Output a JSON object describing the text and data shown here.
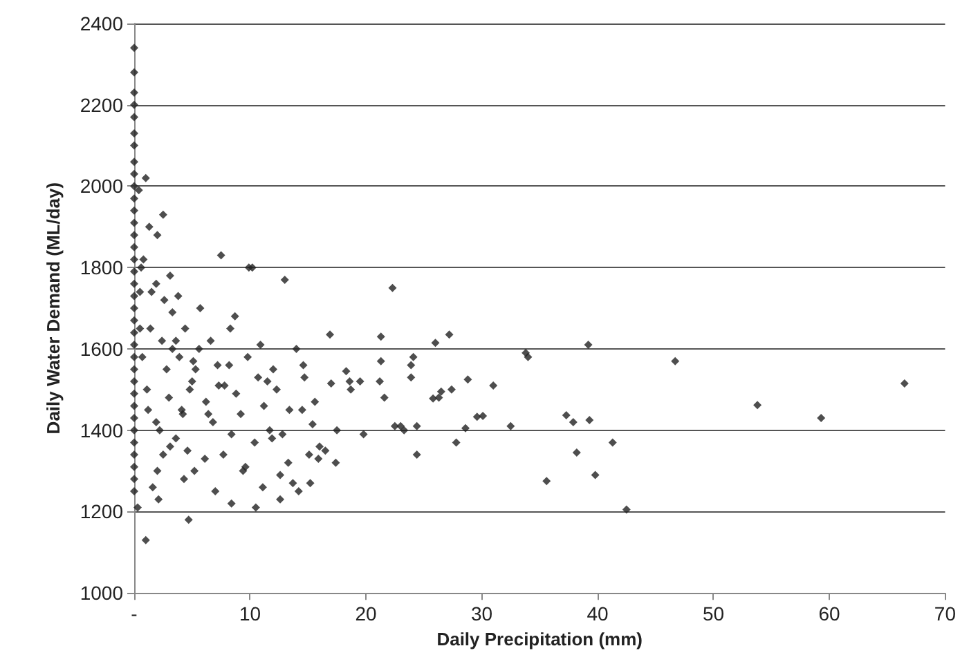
{
  "chart_data": {
    "type": "scatter",
    "xlabel": "Daily Precipitation (mm)",
    "ylabel": "Daily Water Demand (ML/day)",
    "xlim": [
      0,
      70
    ],
    "xticks": [
      {
        "value": 0,
        "label": "-"
      },
      10,
      20,
      30,
      40,
      50,
      60,
      70
    ],
    "ylim": [
      1000,
      2400
    ],
    "yticks": [
      1000,
      1200,
      1400,
      1600,
      1800,
      2000,
      2200,
      2400
    ],
    "grid": "y",
    "marker": "diamond",
    "series": [
      {
        "color": "#222222",
        "x": [
          0,
          0,
          0,
          0,
          0,
          0,
          0,
          0,
          0,
          0,
          0,
          0,
          0,
          0,
          0,
          0,
          0,
          0,
          0,
          0,
          0,
          0,
          0,
          0,
          0,
          0,
          0,
          0,
          0,
          0,
          0,
          0,
          0,
          0,
          0,
          0.3,
          0.5,
          0.4,
          0.6,
          0.8,
          1.0,
          0.5,
          0.7,
          1.2,
          1.5,
          1.3,
          2.0,
          1.1,
          2.5,
          1.9,
          2.6,
          3.1,
          3.3,
          2.8,
          1.9,
          2.5,
          3.6,
          3.9,
          4.8,
          4.2,
          4.6,
          5.3,
          1.4,
          2.2,
          3.0,
          3.6,
          4.1,
          5.0,
          5.6,
          6.2,
          6.8,
          7.2,
          7.8,
          8.3,
          8.8,
          9.2,
          9.8,
          10.2,
          10.7,
          11.2,
          11.7,
          12.3,
          12.8,
          13.4,
          14.0,
          14.6,
          15.1,
          15.6,
          16.0,
          2.0,
          3.1,
          4.3,
          5.2,
          6.1,
          7.0,
          7.7,
          8.4,
          9.6,
          10.4,
          11.1,
          11.9,
          12.6,
          13.3,
          14.2,
          15.2,
          15.9,
          16.5,
          3.3,
          4.4,
          5.7,
          6.6,
          7.5,
          8.7,
          9.9,
          10.9,
          12.0,
          13.0,
          14.7,
          2.4,
          3.8,
          5.1,
          6.4,
          7.3,
          8.2,
          9.4,
          10.5,
          11.5,
          12.6,
          13.7,
          14.5,
          15.4,
          16.9,
          4.7,
          1.0,
          1.6,
          8.4,
          2.1,
          17.0,
          17.4,
          17.5,
          18.3,
          18.6,
          18.7,
          19.5,
          19.8,
          21.2,
          21.3,
          21.3,
          21.6,
          22.3,
          22.5,
          23.0,
          23.3,
          23.9,
          23.9,
          24.1,
          24.4,
          24.4,
          25.8,
          26.0,
          26.3,
          26.5,
          27.2,
          27.4,
          27.8,
          28.6,
          28.8,
          29.6,
          30.1,
          31.0,
          32.5,
          33.8,
          34.0,
          35.6,
          37.3,
          37.9,
          38.2,
          39.2,
          39.3,
          39.8,
          41.3,
          42.5,
          46.7,
          53.8,
          59.3,
          66.5
        ],
        "values": [
          2340,
          2280,
          2230,
          2200,
          2170,
          2130,
          2100,
          2060,
          2030,
          2000,
          1970,
          1940,
          1910,
          1880,
          1850,
          1820,
          1790,
          1760,
          1730,
          1700,
          1670,
          1640,
          1610,
          1580,
          1550,
          1520,
          1490,
          1460,
          1430,
          1400,
          1370,
          1340,
          1310,
          1280,
          1250,
          1210,
          1740,
          1990,
          1800,
          1820,
          2020,
          1650,
          1580,
          1450,
          1740,
          1900,
          1880,
          1500,
          1930,
          1760,
          1720,
          1780,
          1600,
          1550,
          1420,
          1340,
          1620,
          1580,
          1500,
          1440,
          1350,
          1550,
          1650,
          1400,
          1480,
          1380,
          1450,
          1520,
          1600,
          1470,
          1420,
          1560,
          1510,
          1650,
          1490,
          1440,
          1580,
          1800,
          1530,
          1460,
          1400,
          1500,
          1390,
          1450,
          1600,
          1560,
          1340,
          1470,
          1360,
          1300,
          1360,
          1280,
          1300,
          1330,
          1250,
          1340,
          1390,
          1310,
          1370,
          1260,
          1380,
          1230,
          1320,
          1250,
          1270,
          1330,
          1350,
          1690,
          1650,
          1700,
          1620,
          1830,
          1680,
          1800,
          1610,
          1550,
          1770,
          1530,
          1620,
          1730,
          1570,
          1440,
          1510,
          1560,
          1300,
          1210,
          1520,
          1290,
          1270,
          1450,
          1415,
          1635,
          1180,
          1130,
          1260,
          1220,
          1230,
          1515,
          1320,
          1400,
          1545,
          1520,
          1500,
          1520,
          1390,
          1520,
          1630,
          1570,
          1480,
          1750,
          1410,
          1410,
          1400,
          1560,
          1530,
          1580,
          1340,
          1410,
          1478,
          1615,
          1480,
          1495,
          1635,
          1500,
          1370,
          1405,
          1525,
          1433,
          1435,
          1510,
          1410,
          1590,
          1580,
          1275,
          1437,
          1420,
          1345,
          1610,
          1425,
          1290,
          1370,
          1205,
          1570,
          1462,
          1430,
          1515
        ]
      }
    ]
  }
}
